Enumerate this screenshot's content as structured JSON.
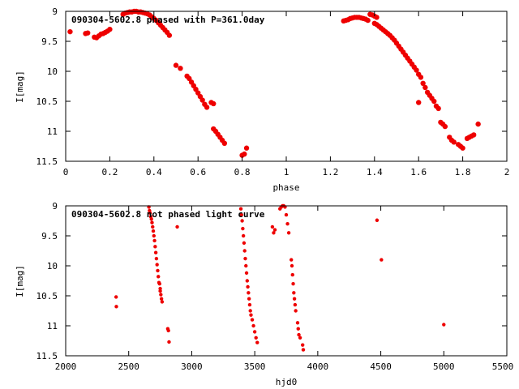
{
  "chart_data": [
    {
      "type": "scatter",
      "title": "090304-5602.8 phased with P=361.0day",
      "xlabel": "phase",
      "ylabel": "I[mag]",
      "xlim": [
        0,
        2
      ],
      "ylim": [
        11.5,
        9
      ],
      "y_inverted": true,
      "x_ticks": [
        "0",
        "0.2",
        "0.4",
        "0.6",
        "0.8",
        "1",
        "1.2",
        "1.4",
        "1.6",
        "1.8",
        "2"
      ],
      "y_ticks": [
        "9",
        "9.5",
        "10",
        "10.5",
        "11",
        "11.5"
      ],
      "grid": false,
      "legend": "none",
      "series": [
        {
          "color": "#ee0000",
          "points": [
            [
              0.02,
              9.34
            ],
            [
              0.09,
              9.37
            ],
            [
              0.1,
              9.36
            ],
            [
              0.13,
              9.43
            ],
            [
              0.14,
              9.44
            ],
            [
              0.15,
              9.41
            ],
            [
              0.16,
              9.38
            ],
            [
              0.17,
              9.37
            ],
            [
              0.18,
              9.35
            ],
            [
              0.19,
              9.33
            ],
            [
              0.2,
              9.3
            ],
            [
              0.26,
              9.05
            ],
            [
              0.27,
              9.03
            ],
            [
              0.28,
              9.02
            ],
            [
              0.29,
              9.01
            ],
            [
              0.3,
              9.01
            ],
            [
              0.31,
              9.0
            ],
            [
              0.32,
              9.0
            ],
            [
              0.33,
              9.01
            ],
            [
              0.34,
              9.01
            ],
            [
              0.35,
              9.02
            ],
            [
              0.36,
              9.03
            ],
            [
              0.37,
              9.04
            ],
            [
              0.38,
              9.06
            ],
            [
              0.39,
              9.09
            ],
            [
              0.4,
              9.12
            ],
            [
              0.41,
              9.15
            ],
            [
              0.42,
              9.19
            ],
            [
              0.43,
              9.23
            ],
            [
              0.44,
              9.27
            ],
            [
              0.45,
              9.31
            ],
            [
              0.46,
              9.35
            ],
            [
              0.47,
              9.4
            ],
            [
              0.5,
              9.9
            ],
            [
              0.52,
              9.95
            ],
            [
              0.55,
              10.08
            ],
            [
              0.56,
              10.12
            ],
            [
              0.57,
              10.18
            ],
            [
              0.58,
              10.24
            ],
            [
              0.59,
              10.3
            ],
            [
              0.6,
              10.36
            ],
            [
              0.61,
              10.42
            ],
            [
              0.62,
              10.48
            ],
            [
              0.63,
              10.55
            ],
            [
              0.64,
              10.6
            ],
            [
              0.66,
              10.52
            ],
            [
              0.67,
              10.54
            ],
            [
              0.67,
              10.96
            ],
            [
              0.68,
              11.0
            ],
            [
              0.69,
              11.05
            ],
            [
              0.7,
              11.1
            ],
            [
              0.71,
              11.15
            ],
            [
              0.72,
              11.2
            ],
            [
              0.8,
              11.4
            ],
            [
              0.81,
              11.38
            ],
            [
              0.82,
              11.28
            ],
            [
              1.26,
              9.16
            ],
            [
              1.27,
              9.15
            ],
            [
              1.28,
              9.14
            ],
            [
              1.29,
              9.12
            ],
            [
              1.3,
              9.11
            ],
            [
              1.31,
              9.1
            ],
            [
              1.32,
              9.1
            ],
            [
              1.33,
              9.1
            ],
            [
              1.34,
              9.11
            ],
            [
              1.35,
              9.12
            ],
            [
              1.36,
              9.13
            ],
            [
              1.37,
              9.15
            ],
            [
              1.38,
              9.05
            ],
            [
              1.39,
              9.06
            ],
            [
              1.4,
              9.08
            ],
            [
              1.41,
              9.1
            ],
            [
              1.4,
              9.2
            ],
            [
              1.41,
              9.22
            ],
            [
              1.42,
              9.25
            ],
            [
              1.43,
              9.28
            ],
            [
              1.44,
              9.31
            ],
            [
              1.45,
              9.34
            ],
            [
              1.46,
              9.37
            ],
            [
              1.47,
              9.4
            ],
            [
              1.48,
              9.44
            ],
            [
              1.49,
              9.48
            ],
            [
              1.5,
              9.53
            ],
            [
              1.51,
              9.58
            ],
            [
              1.52,
              9.63
            ],
            [
              1.53,
              9.68
            ],
            [
              1.54,
              9.73
            ],
            [
              1.55,
              9.78
            ],
            [
              1.56,
              9.83
            ],
            [
              1.57,
              9.88
            ],
            [
              1.58,
              9.93
            ],
            [
              1.59,
              9.98
            ],
            [
              1.6,
              10.05
            ],
            [
              1.61,
              10.1
            ],
            [
              1.62,
              10.2
            ],
            [
              1.63,
              10.27
            ],
            [
              1.64,
              10.35
            ],
            [
              1.65,
              10.4
            ],
            [
              1.66,
              10.45
            ],
            [
              1.6,
              10.52
            ],
            [
              1.67,
              10.5
            ],
            [
              1.68,
              10.58
            ],
            [
              1.69,
              10.62
            ],
            [
              1.7,
              10.85
            ],
            [
              1.71,
              10.88
            ],
            [
              1.72,
              10.92
            ],
            [
              1.74,
              11.1
            ],
            [
              1.75,
              11.15
            ],
            [
              1.76,
              11.18
            ],
            [
              1.78,
              11.22
            ],
            [
              1.79,
              11.25
            ],
            [
              1.8,
              11.28
            ],
            [
              1.82,
              11.12
            ],
            [
              1.83,
              11.1
            ],
            [
              1.84,
              11.08
            ],
            [
              1.85,
              11.06
            ],
            [
              1.87,
              10.88
            ]
          ]
        }
      ]
    },
    {
      "type": "scatter",
      "title": "090304-5602.8 not phased light curve",
      "xlabel": "hjd0",
      "ylabel": "I[mag]",
      "xlim": [
        2000,
        5500
      ],
      "ylim": [
        11.5,
        9
      ],
      "y_inverted": true,
      "x_ticks": [
        "2000",
        "2500",
        "3000",
        "3500",
        "4000",
        "4500",
        "5000",
        "5500"
      ],
      "y_ticks": [
        "9",
        "9.5",
        "10",
        "10.5",
        "11",
        "11.5"
      ],
      "grid": false,
      "legend": "none",
      "series": [
        {
          "color": "#ee0000",
          "points": [
            [
              2400,
              10.52
            ],
            [
              2402,
              10.68
            ],
            [
              2660,
              9.02
            ],
            [
              2665,
              9.08
            ],
            [
              2670,
              9.12
            ],
            [
              2675,
              9.18
            ],
            [
              2680,
              9.22
            ],
            [
              2685,
              9.28
            ],
            [
              2690,
              9.35
            ],
            [
              2695,
              9.42
            ],
            [
              2700,
              9.5
            ],
            [
              2705,
              9.58
            ],
            [
              2710,
              9.68
            ],
            [
              2715,
              9.78
            ],
            [
              2720,
              9.88
            ],
            [
              2725,
              9.98
            ],
            [
              2730,
              10.08
            ],
            [
              2735,
              10.18
            ],
            [
              2740,
              10.28
            ],
            [
              2750,
              10.42
            ],
            [
              2755,
              10.48
            ],
            [
              2760,
              10.55
            ],
            [
              2765,
              10.6
            ],
            [
              2745,
              10.3
            ],
            [
              2750,
              10.38
            ],
            [
              2810,
              11.05
            ],
            [
              2815,
              11.08
            ],
            [
              2820,
              11.27
            ],
            [
              2885,
              9.35
            ],
            [
              3390,
              9.05
            ],
            [
              3395,
              9.15
            ],
            [
              3400,
              9.25
            ],
            [
              3405,
              9.38
            ],
            [
              3410,
              9.5
            ],
            [
              3415,
              9.62
            ],
            [
              3420,
              9.75
            ],
            [
              3425,
              9.88
            ],
            [
              3430,
              10.0
            ],
            [
              3435,
              10.12
            ],
            [
              3440,
              10.25
            ],
            [
              3445,
              10.35
            ],
            [
              3450,
              10.45
            ],
            [
              3455,
              10.55
            ],
            [
              3460,
              10.65
            ],
            [
              3465,
              10.75
            ],
            [
              3470,
              10.82
            ],
            [
              3480,
              10.9
            ],
            [
              3490,
              11.0
            ],
            [
              3500,
              11.1
            ],
            [
              3510,
              11.2
            ],
            [
              3520,
              11.28
            ],
            [
              3640,
              9.35
            ],
            [
              3650,
              9.45
            ],
            [
              3660,
              9.4
            ],
            [
              3700,
              9.05
            ],
            [
              3710,
              9.02
            ],
            [
              3720,
              9.0
            ],
            [
              3730,
              9.0
            ],
            [
              3740,
              9.02
            ],
            [
              3750,
              9.15
            ],
            [
              3760,
              9.3
            ],
            [
              3770,
              9.45
            ],
            [
              3790,
              9.9
            ],
            [
              3795,
              10.0
            ],
            [
              3800,
              10.15
            ],
            [
              3805,
              10.3
            ],
            [
              3810,
              10.45
            ],
            [
              3815,
              10.55
            ],
            [
              3820,
              10.65
            ],
            [
              3825,
              10.75
            ],
            [
              3840,
              10.95
            ],
            [
              3845,
              11.05
            ],
            [
              3850,
              11.15
            ],
            [
              3860,
              11.2
            ],
            [
              3880,
              11.32
            ],
            [
              3885,
              11.4
            ],
            [
              4470,
              9.24
            ],
            [
              4505,
              9.9
            ],
            [
              5000,
              10.98
            ]
          ]
        }
      ]
    }
  ]
}
